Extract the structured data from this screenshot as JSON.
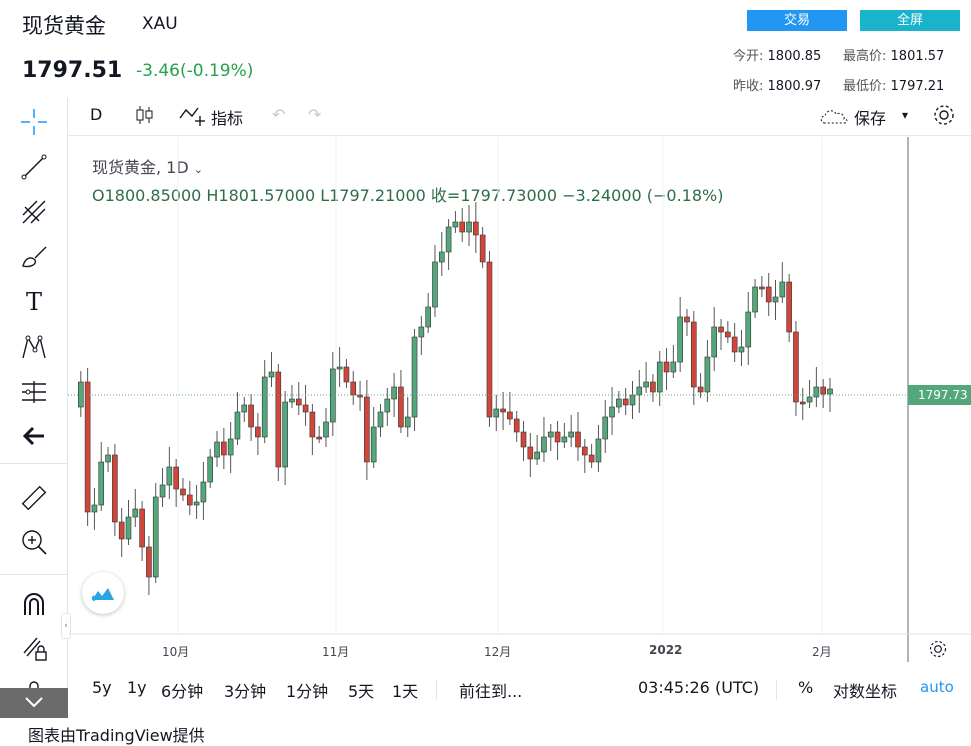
{
  "header": {
    "title": "现货黄金",
    "symbol": "XAU",
    "price": "1797.51",
    "change": "-3.46(-0.19%)",
    "trade_button": "交易",
    "fullscreen_button": "全屏",
    "stats": {
      "open_label": "今开:",
      "open_value": "1800.85",
      "high_label": "最高价:",
      "high_value": "1801.57",
      "prev_label": "昨收:",
      "prev_value": "1800.97",
      "low_label": "最低价:",
      "low_value": "1797.21"
    }
  },
  "toolbar": {
    "interval": "D",
    "indicators": "指标",
    "save": "保存"
  },
  "legend": {
    "name": "现货黄金, 1D",
    "ohlc": "O1800.85000   H1801.57000   L1797.21000   收=1797.73000   −3.24000 (−0.18%)"
  },
  "price_label": "1797.73",
  "x_axis": [
    "10月",
    "11月",
    "12月",
    "2022",
    "2月"
  ],
  "bottom": {
    "ranges": [
      "5y",
      "1y",
      "6分钟",
      "3分钟",
      "1分钟",
      "5天",
      "1天"
    ],
    "goto": "前往到...",
    "time": "03:45:26 (UTC)",
    "percent": "%",
    "log": "对数坐标",
    "auto": "auto"
  },
  "footer": "图表由TradingView提供",
  "colors": {
    "up": "#53a77a",
    "down": "#d0463a",
    "accent": "#2196f3"
  }
}
